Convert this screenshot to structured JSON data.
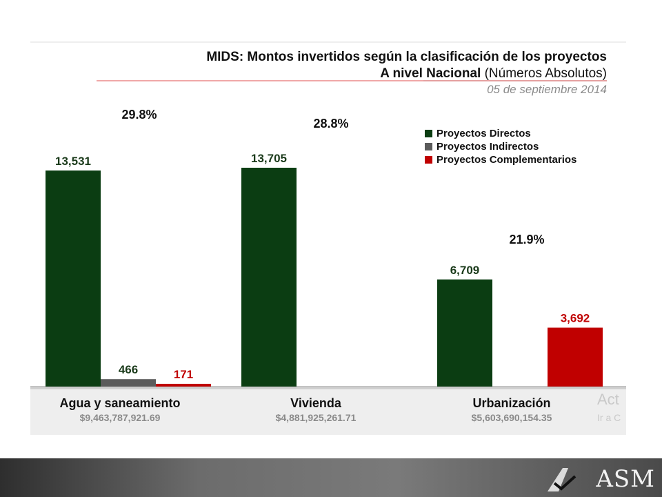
{
  "slide": {
    "logo_text": "ASM",
    "watermark_line1": "Act",
    "watermark_line2": "Ir a C"
  },
  "chart_data": {
    "type": "bar",
    "title_line1": "MIDS: Montos invertidos según la clasificación de los proyectos",
    "title_line2": "A nivel Nacional",
    "title_unit": "(Números Absolutos)",
    "subtitle": "05 de septiembre 2014",
    "categories": [
      "Agua y saneamiento",
      "Vivienda",
      "Urbanización"
    ],
    "category_amounts": [
      "$9,463,787,921.69",
      "$4,881,925,261.71",
      "$5,603,690,154.35"
    ],
    "category_percentages": [
      "29.8%",
      "28.8%",
      "21.9%"
    ],
    "series": [
      {
        "name": "Proyectos Directos",
        "color": "#0b3d12",
        "values": [
          13531,
          13705,
          6709
        ],
        "labels": [
          "13,531",
          "13,705",
          "6,709"
        ]
      },
      {
        "name": "Proyectos Indirectos",
        "color": "#5b5b5b",
        "values": [
          466,
          null,
          null
        ],
        "labels": [
          "466",
          "",
          ""
        ]
      },
      {
        "name": "Proyectos Complementarios",
        "color": "#c00000",
        "values": [
          171,
          null,
          3692
        ],
        "labels": [
          "171",
          "",
          "3,692"
        ]
      }
    ],
    "ylim": [
      0,
      13705
    ],
    "grid": false,
    "legend_position": "top-right",
    "label_colors": {
      "default": "#1a3a1a",
      "complementarios": "#c00000"
    }
  }
}
